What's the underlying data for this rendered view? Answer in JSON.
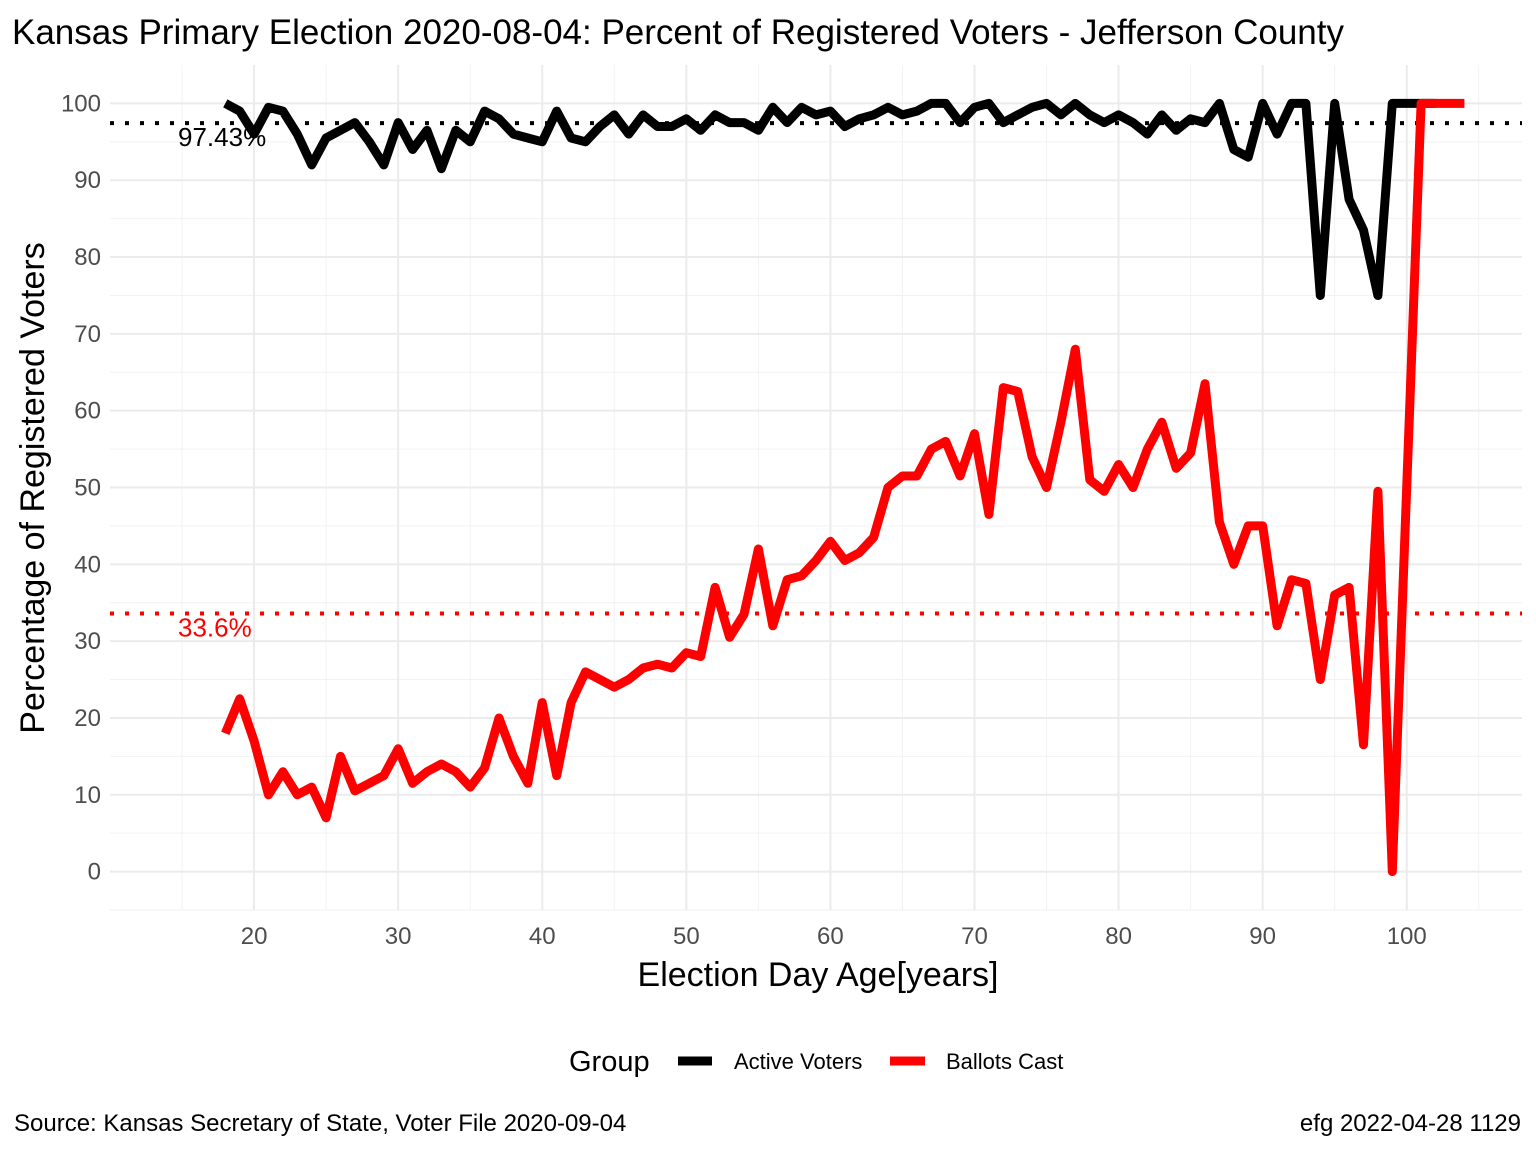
{
  "chart_data": {
    "type": "line",
    "title": "Kansas Primary Election 2020-08-04:  Percent of Registered Voters - Jefferson County",
    "xlabel": "Election Day Age[years]",
    "ylabel": "Percentage of Registered Voters",
    "xlim": [
      10,
      108
    ],
    "ylim": [
      -5,
      105
    ],
    "x_ticks": [
      20,
      30,
      40,
      50,
      60,
      70,
      80,
      90,
      100
    ],
    "x_tick_labels": [
      "20",
      "30",
      "40",
      "50",
      "60",
      "70",
      "80",
      "90",
      "100"
    ],
    "y_ticks": [
      0,
      10,
      20,
      30,
      40,
      50,
      60,
      70,
      80,
      90,
      100
    ],
    "y_tick_labels": [
      "0",
      "10",
      "20",
      "30",
      "40",
      "50",
      "60",
      "70",
      "80",
      "90",
      "100"
    ],
    "grid": true,
    "legend": {
      "title": "Group",
      "position": "bottom"
    },
    "reference_lines": [
      {
        "y": 97.43,
        "label": "97.43%",
        "color": "#000000"
      },
      {
        "y": 33.6,
        "label": "33.6%",
        "color": "#ff0000"
      }
    ],
    "series": [
      {
        "name": "Active Voters",
        "color": "#000000",
        "x": [
          18,
          19,
          20,
          21,
          22,
          23,
          24,
          25,
          26,
          27,
          28,
          29,
          30,
          31,
          32,
          33,
          34,
          35,
          36,
          37,
          38,
          39,
          40,
          41,
          42,
          43,
          44,
          45,
          46,
          47,
          48,
          49,
          50,
          51,
          52,
          53,
          54,
          55,
          56,
          57,
          58,
          59,
          60,
          61,
          62,
          63,
          64,
          65,
          66,
          67,
          68,
          69,
          70,
          71,
          72,
          73,
          74,
          75,
          76,
          77,
          78,
          79,
          80,
          81,
          82,
          83,
          84,
          85,
          86,
          87,
          88,
          89,
          90,
          91,
          92,
          93,
          94,
          95,
          96,
          97,
          98,
          99,
          100,
          101,
          102
        ],
        "y": [
          100,
          99,
          96,
          99.5,
          99,
          96,
          92,
          95.5,
          96.5,
          97.5,
          95,
          92,
          97.5,
          94,
          96.5,
          91.5,
          96.5,
          95,
          99,
          98,
          96,
          95.5,
          95,
          99,
          95.5,
          95,
          97,
          98.5,
          96,
          98.5,
          97,
          97,
          98,
          96.5,
          98.5,
          97.5,
          97.5,
          96.5,
          99.5,
          97.5,
          99.5,
          98.5,
          99,
          97,
          98,
          98.5,
          99.5,
          98.5,
          99,
          100,
          100,
          97.5,
          99.5,
          100,
          97.5,
          98.5,
          99.5,
          100,
          98.5,
          100,
          98.5,
          97.5,
          98.5,
          97.5,
          96,
          98.5,
          96.5,
          98,
          97.5,
          100,
          94,
          93,
          100,
          96,
          100,
          100,
          75,
          100,
          87.5,
          83.5,
          75,
          100,
          100,
          100,
          100
        ]
      },
      {
        "name": "Ballots Cast",
        "color": "#ff0000",
        "x": [
          18,
          19,
          20,
          21,
          22,
          23,
          24,
          25,
          26,
          27,
          28,
          29,
          30,
          31,
          32,
          33,
          34,
          35,
          36,
          37,
          38,
          39,
          40,
          41,
          42,
          43,
          44,
          45,
          46,
          47,
          48,
          49,
          50,
          51,
          52,
          53,
          54,
          55,
          56,
          57,
          58,
          59,
          60,
          61,
          62,
          63,
          64,
          65,
          66,
          67,
          68,
          69,
          70,
          71,
          72,
          73,
          74,
          75,
          76,
          77,
          78,
          79,
          80,
          81,
          82,
          83,
          84,
          85,
          86,
          87,
          88,
          89,
          90,
          91,
          92,
          93,
          94,
          95,
          96,
          97,
          98,
          99,
          100,
          101,
          102,
          103,
          104
        ],
        "y": [
          18,
          22.5,
          17,
          10,
          13,
          10,
          11,
          7,
          15,
          10.5,
          11.5,
          12.5,
          16,
          11.5,
          13,
          14,
          13,
          11,
          13.5,
          20,
          15,
          11.5,
          22,
          12.5,
          22,
          26,
          25,
          24,
          25,
          26.5,
          27,
          26.5,
          28.5,
          28,
          37,
          30.5,
          33.5,
          42,
          32,
          38,
          38.5,
          40.5,
          43,
          40.5,
          41.5,
          43.5,
          50,
          51.5,
          51.5,
          55,
          56,
          51.5,
          57,
          46.5,
          63,
          62.5,
          54,
          50,
          58.5,
          68,
          51,
          49.5,
          53,
          50,
          55,
          58.5,
          52.5,
          54.5,
          63.5,
          45.5,
          40,
          45,
          45,
          32,
          38,
          37.5,
          25,
          36,
          37,
          16.5,
          49.5,
          0,
          50,
          100,
          100,
          100,
          100
        ]
      }
    ]
  },
  "caption": {
    "source": "Source:  Kansas Secretary of State, Voter File  2020-09-04",
    "credit": "efg 2022-04-28 1129"
  }
}
